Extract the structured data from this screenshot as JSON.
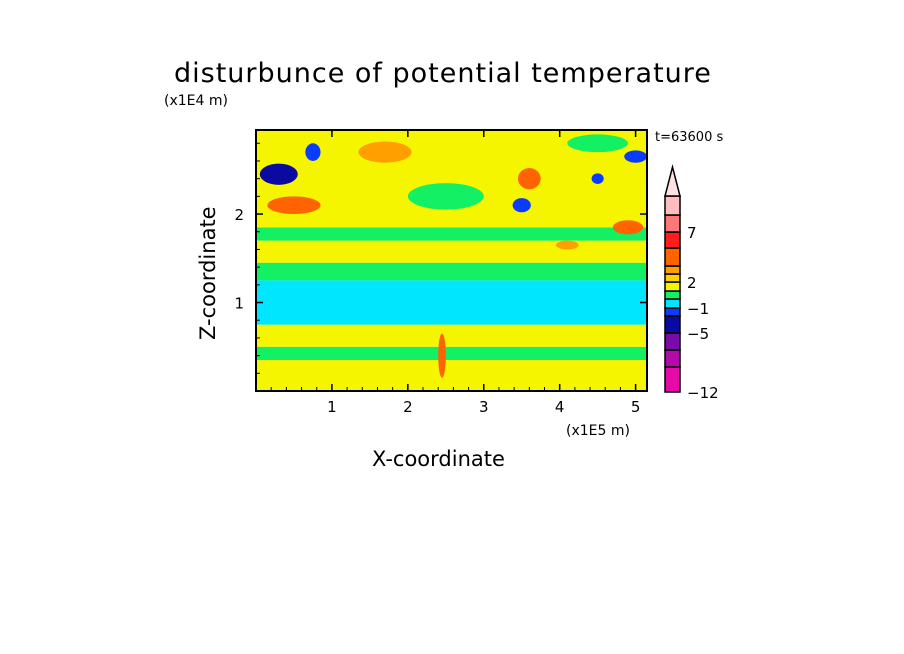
{
  "chart_data": {
    "type": "heatmap",
    "title": "disturbunce of potential temperature",
    "xlabel": "X-coordinate",
    "ylabel": "Z-coordinate",
    "x_unit": "(x1E5 m)",
    "z_unit": "(x1E4 m)",
    "time_label": "t=63600 s",
    "xlim": [
      0,
      5.15
    ],
    "ylim": [
      0,
      2.95
    ],
    "xticks": [
      "1",
      "2",
      "3",
      "4",
      "5"
    ],
    "xtick_values": [
      1,
      2,
      3,
      4,
      5
    ],
    "yticks": [
      "1",
      "2"
    ],
    "ytick_values": [
      1,
      2
    ],
    "colorbar": {
      "colors": [
        "#e60aa8",
        "#b40aaa",
        "#7a0aaa",
        "#0a0aa0",
        "#0a3cff",
        "#00e6ff",
        "#14f064",
        "#f5f500",
        "#ffd200",
        "#ffa000",
        "#ff6400",
        "#ff1e1e",
        "#ff7878",
        "#ffbebe",
        "#ffe1e1"
      ],
      "labels": [
        "-12",
        "-5",
        "-1",
        "2",
        "7"
      ],
      "label_segments": [
        0,
        3,
        5,
        8,
        12
      ]
    },
    "bands": [
      {
        "z": [
          0,
          0.35
        ],
        "color": "#f5f500"
      },
      {
        "z": [
          0.35,
          0.5
        ],
        "color": "#14f064"
      },
      {
        "z": [
          0.5,
          0.75
        ],
        "color": "#f5f500"
      },
      {
        "z": [
          0.75,
          1.25
        ],
        "color": "#00e6ff"
      },
      {
        "z": [
          1.25,
          1.45
        ],
        "color": "#14f064"
      },
      {
        "z": [
          1.45,
          1.7
        ],
        "color": "#f5f500"
      },
      {
        "z": [
          1.7,
          1.85
        ],
        "color": "#14f064"
      },
      {
        "z": [
          1.85,
          2.95
        ],
        "color": "#f5f500"
      }
    ],
    "blobs": [
      {
        "x": 0.3,
        "z": 2.45,
        "rx": 0.25,
        "rz": 0.12,
        "color": "#0a0aa0"
      },
      {
        "x": 0.5,
        "z": 2.1,
        "rx": 0.35,
        "rz": 0.1,
        "color": "#ff6400"
      },
      {
        "x": 1.7,
        "z": 2.7,
        "rx": 0.35,
        "rz": 0.12,
        "color": "#ffa000"
      },
      {
        "x": 3.6,
        "z": 2.4,
        "rx": 0.15,
        "rz": 0.12,
        "color": "#ff6400"
      },
      {
        "x": 3.5,
        "z": 2.1,
        "rx": 0.12,
        "rz": 0.08,
        "color": "#0a3cff"
      },
      {
        "x": 4.5,
        "z": 2.4,
        "rx": 0.08,
        "rz": 0.06,
        "color": "#0a3cff"
      },
      {
        "x": 5.0,
        "z": 2.65,
        "rx": 0.15,
        "rz": 0.07,
        "color": "#0a3cff"
      },
      {
        "x": 4.9,
        "z": 1.85,
        "rx": 0.2,
        "rz": 0.08,
        "color": "#ff6400"
      },
      {
        "x": 4.1,
        "z": 1.65,
        "rx": 0.15,
        "rz": 0.05,
        "color": "#ffa000"
      },
      {
        "x": 0.75,
        "z": 2.7,
        "rx": 0.1,
        "rz": 0.1,
        "color": "#0a3cff"
      },
      {
        "x": 2.5,
        "z": 2.2,
        "rx": 0.5,
        "rz": 0.15,
        "color": "#14f064"
      },
      {
        "x": 4.5,
        "z": 2.8,
        "rx": 0.4,
        "rz": 0.1,
        "color": "#14f064"
      },
      {
        "x": 2.45,
        "z": 0.4,
        "rx": 0.05,
        "rz": 0.25,
        "color": "#ff6400"
      }
    ]
  }
}
